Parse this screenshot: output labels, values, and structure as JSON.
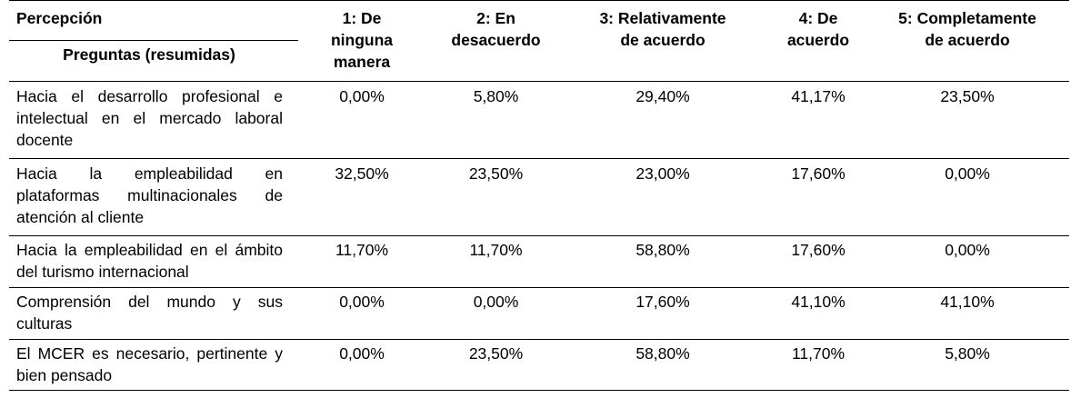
{
  "table": {
    "header": {
      "perception": "Percepción",
      "questions": "Preguntas (resumidas)",
      "columns": [
        "1: De\nninguna\nmanera",
        "2: En\ndesacuerdo",
        "3: Relativamente\nde acuerdo",
        "4: De\nacuerdo",
        "5: Completamente\nde acuerdo"
      ]
    },
    "rows": [
      {
        "question": "Hacia el desarrollo profesional e intelectual en el mercado laboral docente",
        "values": [
          "0,00%",
          "5,80%",
          "29,40%",
          "41,17%",
          "23,50%"
        ]
      },
      {
        "question": "Hacia la empleabilidad en plataformas multinacionales de atención al cliente",
        "values": [
          "32,50%",
          "23,50%",
          "23,00%",
          "17,60%",
          "0,00%"
        ]
      },
      {
        "question": "Hacia la empleabilidad en el ámbito del turismo internacional",
        "values": [
          "11,70%",
          "11,70%",
          "58,80%",
          "17,60%",
          "0,00%"
        ]
      },
      {
        "question": "Comprensión del mundo y sus culturas",
        "values": [
          "0,00%",
          "0,00%",
          "17,60%",
          "41,10%",
          "41,10%"
        ]
      },
      {
        "question": "El MCER es necesario, pertinente y bien pensado",
        "values": [
          "0,00%",
          "23,50%",
          "58,80%",
          "11,70%",
          "5,80%"
        ]
      }
    ]
  }
}
